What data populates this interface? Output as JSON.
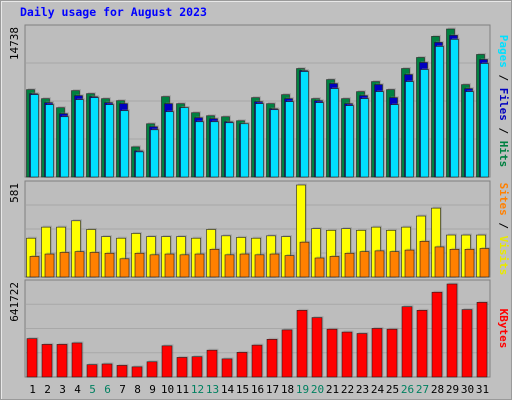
{
  "chart_data": {
    "type": "bar",
    "title": "Daily usage for August 2023",
    "days": [
      "1",
      "2",
      "3",
      "4",
      "5",
      "6",
      "7",
      "8",
      "9",
      "10",
      "11",
      "12",
      "13",
      "14",
      "15",
      "16",
      "17",
      "18",
      "19",
      "20",
      "21",
      "22",
      "23",
      "24",
      "25",
      "26",
      "27",
      "28",
      "29",
      "30",
      "31"
    ],
    "weekend_days": [
      "5",
      "6",
      "12",
      "13",
      "19",
      "20",
      "26",
      "27"
    ],
    "panels": [
      {
        "name": "hits-files-pages",
        "max_label": "14738",
        "max": 14738,
        "legend": [
          "Pages",
          "Files",
          "Hits"
        ],
        "series": [
          {
            "name": "Hits",
            "color": "#008040",
            "values": [
              8700,
              7800,
              6900,
              8600,
              8300,
              7800,
              7600,
              3000,
              5300,
              8000,
              7300,
              6400,
              6100,
              6000,
              5600,
              7900,
              7300,
              8200,
              10800,
              7800,
              9700,
              7800,
              8500,
              9500,
              8700,
              10800,
              11900,
              14000,
              14738,
              9200,
              12200
            ]
          },
          {
            "name": "Files",
            "color": "#0000c0",
            "values": [
              8300,
              7400,
              6300,
              8100,
              8000,
              7400,
              7300,
              2600,
              5000,
              7300,
              6900,
              5900,
              5800,
              5500,
              5300,
              7500,
              6800,
              7800,
              10600,
              7600,
              9300,
              7300,
              8100,
              9200,
              7900,
              10200,
              11400,
              13400,
              14100,
              8800,
              11700
            ]
          },
          {
            "name": "Pages",
            "color": "#00e0ff",
            "values": [
              8200,
              7200,
              6000,
              7700,
              7900,
              7200,
              6600,
              2500,
              4700,
              6500,
              6900,
              5500,
              5500,
              5400,
              5300,
              7300,
              6700,
              7500,
              10500,
              7400,
              8800,
              7100,
              7800,
              8500,
              7200,
              9500,
              10700,
              13000,
              13700,
              8500,
              11300
            ]
          }
        ]
      },
      {
        "name": "visits-sites",
        "max_label": "581",
        "max": 581,
        "legend": [
          "Sites",
          "Visits"
        ],
        "series": [
          {
            "name": "Visits",
            "color": "#ffff00",
            "values": [
              245,
              315,
              315,
              355,
              300,
              255,
              245,
              275,
              255,
              255,
              255,
              245,
              300,
              260,
              250,
              245,
              260,
              255,
              581,
              305,
              295,
              305,
              295,
              315,
              295,
              315,
              385,
              435,
              265,
              265,
              265
            ]
          },
          {
            "name": "Sites",
            "color": "#ff8000",
            "values": [
              130,
              145,
              155,
              160,
              155,
              150,
              115,
              150,
              140,
              145,
              140,
              145,
              175,
              140,
              145,
              140,
              145,
              135,
              220,
              120,
              130,
              150,
              160,
              165,
              160,
              170,
              225,
              190,
              175,
              175,
              180
            ]
          }
        ]
      },
      {
        "name": "kbytes",
        "max_label": "641722",
        "max": 641722,
        "legend": [
          "KBytes"
        ],
        "series": [
          {
            "name": "KBytes",
            "color": "#ff0000",
            "values": [
              265000,
              225000,
              225000,
              235000,
              85000,
              90000,
              80000,
              70000,
              105000,
              215000,
              135000,
              140000,
              185000,
              125000,
              170000,
              220000,
              260000,
              325000,
              460000,
              410000,
              330000,
              310000,
              300000,
              335000,
              330000,
              485000,
              460000,
              585000,
              641722,
              465000,
              515000
            ]
          }
        ]
      }
    ]
  }
}
